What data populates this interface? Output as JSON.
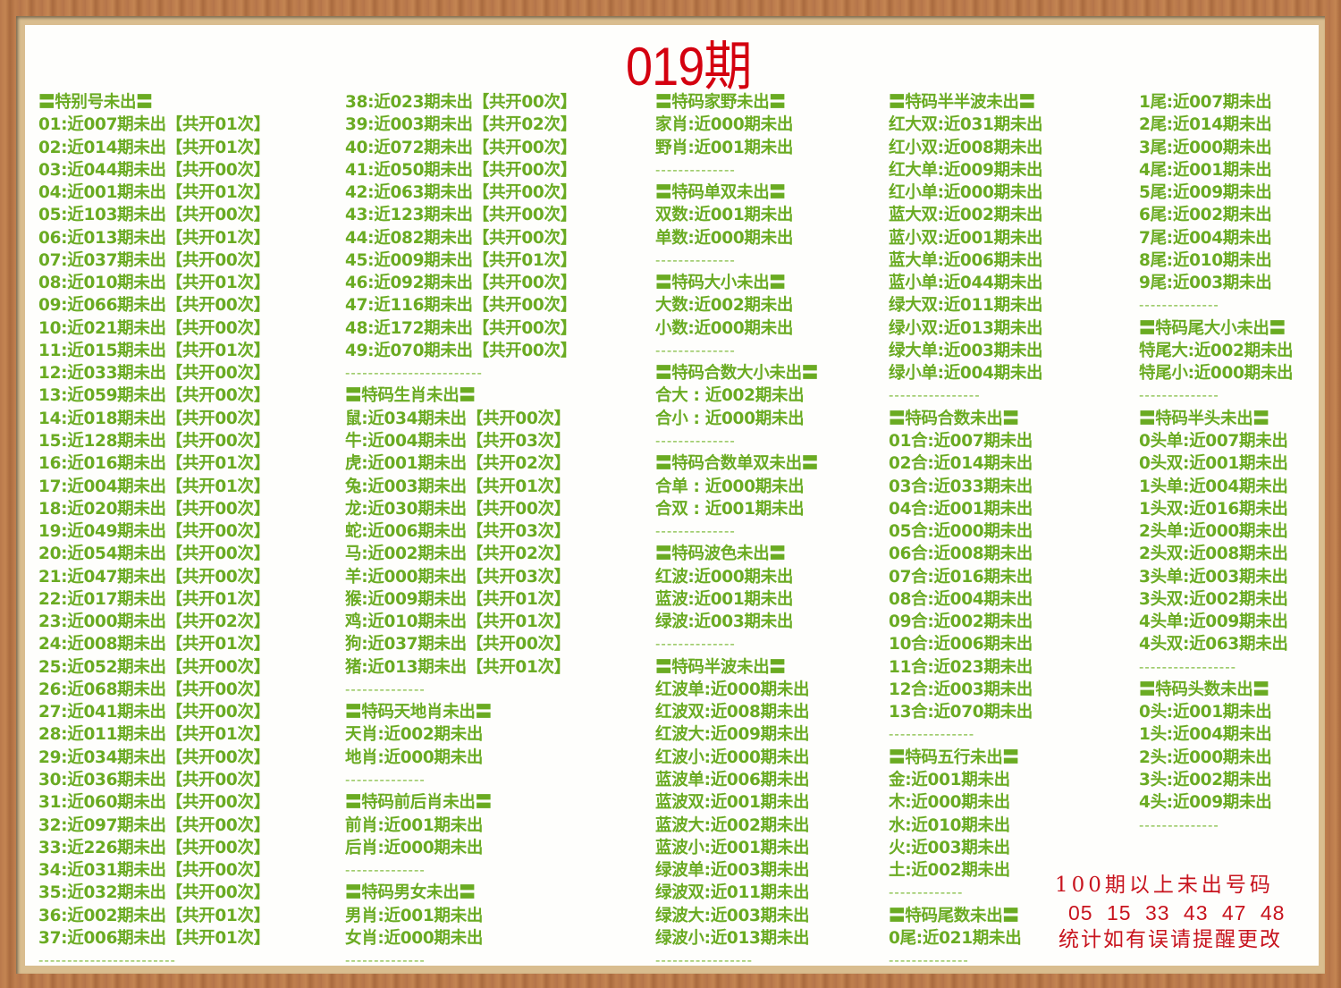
{
  "title": "019期",
  "colors": {
    "text_green": "#6aab22",
    "title_red": "#d4000f",
    "note_red": "#c8141e",
    "frame_wood": "#b9794c"
  },
  "columns": [
    {
      "rows": [
        {
          "type": "header",
          "text": "〓特别号未出〓"
        },
        {
          "type": "item",
          "text": "01:近007期未出【共开01次】"
        },
        {
          "type": "item",
          "text": "02:近014期未出【共开01次】"
        },
        {
          "type": "item",
          "text": "03:近044期未出【共开00次】"
        },
        {
          "type": "item",
          "text": "04:近001期未出【共开01次】"
        },
        {
          "type": "item",
          "text": "05:近103期未出【共开00次】"
        },
        {
          "type": "item",
          "text": "06:近013期未出【共开01次】"
        },
        {
          "type": "item",
          "text": "07:近037期未出【共开00次】"
        },
        {
          "type": "item",
          "text": "08:近010期未出【共开01次】"
        },
        {
          "type": "item",
          "text": "09:近066期未出【共开00次】"
        },
        {
          "type": "item",
          "text": "10:近021期未出【共开00次】"
        },
        {
          "type": "item",
          "text": "11:近015期未出【共开01次】"
        },
        {
          "type": "item",
          "text": "12:近033期未出【共开00次】"
        },
        {
          "type": "item",
          "text": "13:近059期未出【共开00次】"
        },
        {
          "type": "item",
          "text": "14:近018期未出【共开00次】"
        },
        {
          "type": "item",
          "text": "15:近128期未出【共开00次】"
        },
        {
          "type": "item",
          "text": "16:近016期未出【共开01次】"
        },
        {
          "type": "item",
          "text": "17:近004期未出【共开01次】"
        },
        {
          "type": "item",
          "text": "18:近020期未出【共开00次】"
        },
        {
          "type": "item",
          "text": "19:近049期未出【共开00次】"
        },
        {
          "type": "item",
          "text": "20:近054期未出【共开00次】"
        },
        {
          "type": "item",
          "text": "21:近047期未出【共开00次】"
        },
        {
          "type": "item",
          "text": "22:近017期未出【共开01次】"
        },
        {
          "type": "item",
          "text": "23:近000期未出【共开02次】"
        },
        {
          "type": "item",
          "text": "24:近008期未出【共开01次】"
        },
        {
          "type": "item",
          "text": "25:近052期未出【共开00次】"
        },
        {
          "type": "item",
          "text": "26:近068期未出【共开00次】"
        },
        {
          "type": "item",
          "text": "27:近041期未出【共开00次】"
        },
        {
          "type": "item",
          "text": "28:近011期未出【共开01次】"
        },
        {
          "type": "item",
          "text": "29:近034期未出【共开00次】"
        },
        {
          "type": "item",
          "text": "30:近036期未出【共开00次】"
        },
        {
          "type": "item",
          "text": "31:近060期未出【共开00次】"
        },
        {
          "type": "item",
          "text": "32:近097期未出【共开00次】"
        },
        {
          "type": "item",
          "text": "33:近226期未出【共开00次】"
        },
        {
          "type": "item",
          "text": "34:近031期未出【共开00次】"
        },
        {
          "type": "item",
          "text": "35:近032期未出【共开00次】"
        },
        {
          "type": "item",
          "text": "36:近002期未出【共开01次】"
        },
        {
          "type": "item",
          "text": "37:近006期未出【共开01次】"
        },
        {
          "type": "divider",
          "text": "------------------------"
        }
      ]
    },
    {
      "rows": [
        {
          "type": "item",
          "text": "38:近023期未出【共开00次】"
        },
        {
          "type": "item",
          "text": "39:近003期未出【共开02次】"
        },
        {
          "type": "item",
          "text": "40:近072期未出【共开00次】"
        },
        {
          "type": "item",
          "text": "41:近050期未出【共开00次】"
        },
        {
          "type": "item",
          "text": "42:近063期未出【共开00次】"
        },
        {
          "type": "item",
          "text": "43:近123期未出【共开00次】"
        },
        {
          "type": "item",
          "text": "44:近082期未出【共开00次】"
        },
        {
          "type": "item",
          "text": "45:近009期未出【共开01次】"
        },
        {
          "type": "item",
          "text": "46:近092期未出【共开00次】"
        },
        {
          "type": "item",
          "text": "47:近116期未出【共开00次】"
        },
        {
          "type": "item",
          "text": "48:近172期未出【共开00次】"
        },
        {
          "type": "item",
          "text": "49:近070期未出【共开00次】"
        },
        {
          "type": "divider",
          "text": "------------------------"
        },
        {
          "type": "header",
          "text": "〓特码生肖未出〓"
        },
        {
          "type": "item",
          "text": "鼠:近034期未出【共开00次】"
        },
        {
          "type": "item",
          "text": "牛:近004期未出【共开03次】"
        },
        {
          "type": "item",
          "text": "虎:近001期未出【共开02次】"
        },
        {
          "type": "item",
          "text": "兔:近003期未出【共开01次】"
        },
        {
          "type": "item",
          "text": "龙:近030期未出【共开00次】"
        },
        {
          "type": "item",
          "text": "蛇:近006期未出【共开03次】"
        },
        {
          "type": "item",
          "text": "马:近002期未出【共开02次】"
        },
        {
          "type": "item",
          "text": "羊:近000期未出【共开03次】"
        },
        {
          "type": "item",
          "text": "猴:近009期未出【共开01次】"
        },
        {
          "type": "item",
          "text": "鸡:近010期未出【共开01次】"
        },
        {
          "type": "item",
          "text": "狗:近037期未出【共开00次】"
        },
        {
          "type": "item",
          "text": "猪:近013期未出【共开01次】"
        },
        {
          "type": "divider",
          "text": "--------------"
        },
        {
          "type": "header",
          "text": "〓特码天地肖未出〓"
        },
        {
          "type": "item",
          "text": "天肖:近002期未出"
        },
        {
          "type": "item",
          "text": "地肖:近000期未出"
        },
        {
          "type": "divider",
          "text": "--------------"
        },
        {
          "type": "header",
          "text": "〓特码前后肖未出〓"
        },
        {
          "type": "item",
          "text": "前肖:近001期未出"
        },
        {
          "type": "item",
          "text": "后肖:近000期未出"
        },
        {
          "type": "divider",
          "text": "--------------"
        },
        {
          "type": "header",
          "text": "〓特码男女未出〓"
        },
        {
          "type": "item",
          "text": "男肖:近001期未出"
        },
        {
          "type": "item",
          "text": "女肖:近000期未出"
        },
        {
          "type": "divider",
          "text": "--------------"
        }
      ]
    },
    {
      "rows": [
        {
          "type": "header",
          "text": "〓特码家野未出〓"
        },
        {
          "type": "item",
          "text": "家肖:近000期未出"
        },
        {
          "type": "item",
          "text": "野肖:近001期未出"
        },
        {
          "type": "divider",
          "text": "--------------"
        },
        {
          "type": "header",
          "text": "〓特码单双未出〓"
        },
        {
          "type": "item",
          "text": "双数:近001期未出"
        },
        {
          "type": "item",
          "text": "单数:近000期未出"
        },
        {
          "type": "divider",
          "text": "--------------"
        },
        {
          "type": "header",
          "text": "〓特码大小未出〓"
        },
        {
          "type": "item",
          "text": "大数:近002期未出"
        },
        {
          "type": "item",
          "text": "小数:近000期未出"
        },
        {
          "type": "divider",
          "text": "--------------"
        },
        {
          "type": "header",
          "text": "〓特码合数大小未出〓"
        },
        {
          "type": "item",
          "text": "合大 : 近002期未出"
        },
        {
          "type": "item",
          "text": "合小 : 近000期未出"
        },
        {
          "type": "divider",
          "text": "--------------"
        },
        {
          "type": "header",
          "text": "〓特码合数单双未出〓"
        },
        {
          "type": "item",
          "text": "合单 : 近000期未出"
        },
        {
          "type": "item",
          "text": "合双 : 近001期未出"
        },
        {
          "type": "divider",
          "text": "--------------"
        },
        {
          "type": "header",
          "text": "〓特码波色未出〓"
        },
        {
          "type": "item",
          "text": "红波:近000期未出"
        },
        {
          "type": "item",
          "text": "蓝波:近001期未出"
        },
        {
          "type": "item",
          "text": "绿波:近003期未出"
        },
        {
          "type": "divider",
          "text": "--------------"
        },
        {
          "type": "header",
          "text": "〓特码半波未出〓"
        },
        {
          "type": "item",
          "text": "红波单:近000期未出"
        },
        {
          "type": "item",
          "text": "红波双:近008期未出"
        },
        {
          "type": "item",
          "text": "红波大:近009期未出"
        },
        {
          "type": "item",
          "text": "红波小:近000期未出"
        },
        {
          "type": "item",
          "text": "蓝波单:近006期未出"
        },
        {
          "type": "item",
          "text": "蓝波双:近001期未出"
        },
        {
          "type": "item",
          "text": "蓝波大:近002期未出"
        },
        {
          "type": "item",
          "text": "蓝波小:近001期未出"
        },
        {
          "type": "item",
          "text": "绿波单:近003期未出"
        },
        {
          "type": "item",
          "text": "绿波双:近011期未出"
        },
        {
          "type": "item",
          "text": "绿波大:近003期未出"
        },
        {
          "type": "item",
          "text": "绿波小:近013期未出"
        },
        {
          "type": "divider",
          "text": "-----------------"
        }
      ]
    },
    {
      "rows": [
        {
          "type": "header",
          "text": "〓特码半半波未出〓"
        },
        {
          "type": "item",
          "text": "红大双:近031期未出"
        },
        {
          "type": "item",
          "text": "红小双:近008期未出"
        },
        {
          "type": "item",
          "text": "红大单:近009期未出"
        },
        {
          "type": "item",
          "text": "红小单:近000期未出"
        },
        {
          "type": "item",
          "text": "蓝大双:近002期未出"
        },
        {
          "type": "item",
          "text": "蓝小双:近001期未出"
        },
        {
          "type": "item",
          "text": "蓝大单:近006期未出"
        },
        {
          "type": "item",
          "text": "蓝小单:近044期未出"
        },
        {
          "type": "item",
          "text": "绿大双:近011期未出"
        },
        {
          "type": "item",
          "text": "绿小双:近013期未出"
        },
        {
          "type": "item",
          "text": "绿大单:近003期未出"
        },
        {
          "type": "item",
          "text": "绿小单:近004期未出"
        },
        {
          "type": "divider",
          "text": "----------------"
        },
        {
          "type": "header",
          "text": "〓特码合数未出〓"
        },
        {
          "type": "item",
          "text": "01合:近007期未出"
        },
        {
          "type": "item",
          "text": "02合:近014期未出"
        },
        {
          "type": "item",
          "text": "03合:近033期未出"
        },
        {
          "type": "item",
          "text": "04合:近001期未出"
        },
        {
          "type": "item",
          "text": "05合:近000期未出"
        },
        {
          "type": "item",
          "text": "06合:近008期未出"
        },
        {
          "type": "item",
          "text": "07合:近016期未出"
        },
        {
          "type": "item",
          "text": "08合:近004期未出"
        },
        {
          "type": "item",
          "text": "09合:近002期未出"
        },
        {
          "type": "item",
          "text": "10合:近006期未出"
        },
        {
          "type": "item",
          "text": "11合:近023期未出"
        },
        {
          "type": "item",
          "text": "12合:近003期未出"
        },
        {
          "type": "item",
          "text": "13合:近070期未出"
        },
        {
          "type": "divider",
          "text": "---------------"
        },
        {
          "type": "header",
          "text": "〓特码五行未出〓"
        },
        {
          "type": "item",
          "text": "金:近001期未出"
        },
        {
          "type": "item",
          "text": "木:近000期未出"
        },
        {
          "type": "item",
          "text": "水:近010期未出"
        },
        {
          "type": "item",
          "text": "火:近003期未出"
        },
        {
          "type": "item",
          "text": "土:近002期未出"
        },
        {
          "type": "divider",
          "text": "-------------"
        },
        {
          "type": "header",
          "text": "〓特码尾数未出〓"
        },
        {
          "type": "item",
          "text": "0尾:近021期未出"
        },
        {
          "type": "divider",
          "text": "--------------"
        }
      ]
    },
    {
      "rows": [
        {
          "type": "item",
          "text": "1尾:近007期未出"
        },
        {
          "type": "item",
          "text": "2尾:近014期未出"
        },
        {
          "type": "item",
          "text": "3尾:近000期未出"
        },
        {
          "type": "item",
          "text": "4尾:近001期未出"
        },
        {
          "type": "item",
          "text": "5尾:近009期未出"
        },
        {
          "type": "item",
          "text": "6尾:近002期未出"
        },
        {
          "type": "item",
          "text": "7尾:近004期未出"
        },
        {
          "type": "item",
          "text": "8尾:近010期未出"
        },
        {
          "type": "item",
          "text": "9尾:近003期未出"
        },
        {
          "type": "divider",
          "text": "--------------"
        },
        {
          "type": "header",
          "text": "〓特码尾大小未出〓"
        },
        {
          "type": "item",
          "text": "特尾大:近002期未出"
        },
        {
          "type": "item",
          "text": "特尾小:近000期未出"
        },
        {
          "type": "divider",
          "text": "--------------"
        },
        {
          "type": "header",
          "text": "〓特码半头未出〓"
        },
        {
          "type": "item",
          "text": "0头单:近007期未出"
        },
        {
          "type": "item",
          "text": "0头双:近001期未出"
        },
        {
          "type": "item",
          "text": "1头单:近004期未出"
        },
        {
          "type": "item",
          "text": "1头双:近016期未出"
        },
        {
          "type": "item",
          "text": "2头单:近000期未出"
        },
        {
          "type": "item",
          "text": "2头双:近008期未出"
        },
        {
          "type": "item",
          "text": "3头单:近003期未出"
        },
        {
          "type": "item",
          "text": "3头双:近002期未出"
        },
        {
          "type": "item",
          "text": "4头单:近009期未出"
        },
        {
          "type": "item",
          "text": "4头双:近063期未出"
        },
        {
          "type": "divider",
          "text": "-----------------"
        },
        {
          "type": "header",
          "text": "〓特码头数未出〓"
        },
        {
          "type": "item",
          "text": "0头:近001期未出"
        },
        {
          "type": "item",
          "text": "1头:近004期未出"
        },
        {
          "type": "item",
          "text": "2头:近000期未出"
        },
        {
          "type": "item",
          "text": "3头:近002期未出"
        },
        {
          "type": "item",
          "text": "4头:近009期未出"
        },
        {
          "type": "divider",
          "text": "--------------"
        }
      ]
    }
  ],
  "note": {
    "line1": "100期以上未出号码",
    "numbers": "05 15 33 43 47 48",
    "line3": "统计如有误请提醒更改"
  }
}
